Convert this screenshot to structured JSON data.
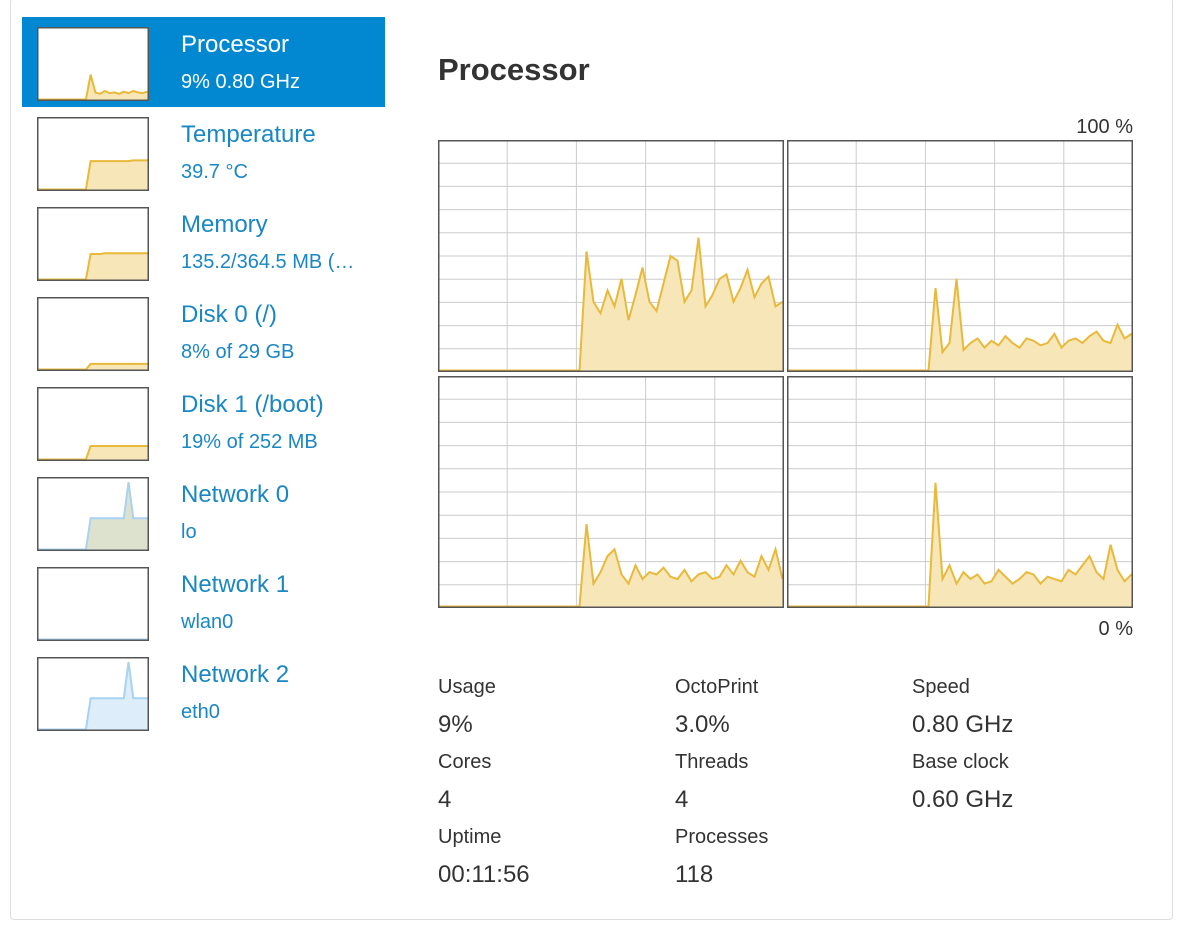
{
  "sidebar": [
    {
      "name": "Processor",
      "detail": "9% 0.80 GHz",
      "selected": true,
      "color": "#e8b93a",
      "fill": "#f7e6b8",
      "history": [
        0,
        0,
        0,
        0,
        0,
        0,
        0,
        0,
        0,
        0,
        0,
        35,
        10,
        8,
        12,
        9,
        10,
        8,
        11,
        9,
        12,
        10,
        9,
        11
      ]
    },
    {
      "name": "Temperature",
      "detail": "39.7 °C",
      "color": "#e8b93a",
      "fill": "#f7e6b8",
      "history": [
        0,
        0,
        0,
        0,
        0,
        0,
        0,
        0,
        0,
        0,
        0,
        40,
        40,
        40,
        40,
        40,
        40,
        40,
        40,
        40,
        41,
        41,
        41,
        41
      ]
    },
    {
      "name": "Memory",
      "detail": "135.2/364.5 MB (…",
      "color": "#e8b93a",
      "fill": "#f7e6b8",
      "history": [
        0,
        0,
        0,
        0,
        0,
        0,
        0,
        0,
        0,
        0,
        0,
        36,
        36,
        36,
        37,
        37,
        37,
        37,
        37,
        37,
        37,
        37,
        37,
        37
      ]
    },
    {
      "name": "Disk 0 (/)",
      "detail": "8% of 29 GB",
      "color": "#e8b93a",
      "fill": "#f7e6b8",
      "history": [
        0,
        0,
        0,
        0,
        0,
        0,
        0,
        0,
        0,
        0,
        0,
        8,
        8,
        8,
        8,
        8,
        8,
        8,
        8,
        8,
        8,
        8,
        8,
        8
      ]
    },
    {
      "name": "Disk 1 (/boot)",
      "detail": "19% of 252 MB",
      "color": "#e8b93a",
      "fill": "#f7e6b8",
      "history": [
        0,
        0,
        0,
        0,
        0,
        0,
        0,
        0,
        0,
        0,
        0,
        19,
        19,
        19,
        19,
        19,
        19,
        19,
        19,
        19,
        19,
        19,
        19,
        19
      ]
    },
    {
      "name": "Network 0",
      "detail": "lo",
      "color": "#a9d2f0",
      "fill": "#dde2cf",
      "history": [
        0,
        0,
        0,
        0,
        0,
        0,
        0,
        0,
        0,
        0,
        0,
        44,
        44,
        44,
        44,
        44,
        44,
        44,
        44,
        95,
        44,
        44,
        44,
        44
      ]
    },
    {
      "name": "Network 1",
      "detail": "wlan0",
      "color": "#a9d2f0",
      "fill": "#ddeefa",
      "history": [
        0,
        0,
        0,
        0,
        0,
        0,
        0,
        0,
        0,
        0,
        0,
        0,
        0,
        0,
        0,
        0,
        0,
        0,
        0,
        0,
        0,
        0,
        0,
        0
      ]
    },
    {
      "name": "Network 2",
      "detail": "eth0",
      "color": "#a9d2f0",
      "fill": "#ddeefa",
      "history": [
        0,
        0,
        0,
        0,
        0,
        0,
        0,
        0,
        0,
        0,
        0,
        44,
        44,
        44,
        44,
        44,
        44,
        44,
        44,
        95,
        44,
        44,
        44,
        44
      ]
    }
  ],
  "panel": {
    "title": "Processor",
    "max_label": "100 %",
    "min_label": "0 %",
    "color": "#e8b93a",
    "fill": "#f7e6b8",
    "cores": [
      [
        0,
        0,
        0,
        0,
        0,
        0,
        0,
        0,
        0,
        0,
        0,
        0,
        0,
        0,
        0,
        0,
        0,
        0,
        0,
        0,
        0,
        52,
        30,
        25,
        35,
        28,
        40,
        22,
        33,
        45,
        30,
        26,
        38,
        50,
        48,
        30,
        35,
        58,
        28,
        33,
        40,
        42,
        30,
        36,
        44,
        32,
        38,
        41,
        28,
        30
      ],
      [
        0,
        0,
        0,
        0,
        0,
        0,
        0,
        0,
        0,
        0,
        0,
        0,
        0,
        0,
        0,
        0,
        0,
        0,
        0,
        0,
        0,
        36,
        8,
        12,
        40,
        9,
        12,
        14,
        10,
        13,
        11,
        15,
        12,
        10,
        14,
        13,
        11,
        12,
        16,
        10,
        13,
        14,
        12,
        15,
        17,
        13,
        12,
        20,
        14,
        16
      ],
      [
        0,
        0,
        0,
        0,
        0,
        0,
        0,
        0,
        0,
        0,
        0,
        0,
        0,
        0,
        0,
        0,
        0,
        0,
        0,
        0,
        0,
        36,
        10,
        15,
        22,
        25,
        14,
        10,
        18,
        12,
        15,
        14,
        17,
        13,
        12,
        16,
        11,
        14,
        15,
        12,
        13,
        18,
        14,
        20,
        15,
        13,
        22,
        16,
        25,
        12
      ],
      [
        0,
        0,
        0,
        0,
        0,
        0,
        0,
        0,
        0,
        0,
        0,
        0,
        0,
        0,
        0,
        0,
        0,
        0,
        0,
        0,
        0,
        54,
        12,
        18,
        10,
        15,
        12,
        14,
        10,
        11,
        16,
        13,
        10,
        12,
        15,
        14,
        10,
        13,
        12,
        11,
        16,
        14,
        18,
        22,
        15,
        12,
        27,
        16,
        11,
        14
      ]
    ]
  },
  "stats": [
    {
      "label": "Usage",
      "value": "9%"
    },
    {
      "label": "OctoPrint",
      "value": "3.0%"
    },
    {
      "label": "Speed",
      "value": "0.80 GHz"
    },
    {
      "label": "Cores",
      "value": "4"
    },
    {
      "label": "Threads",
      "value": "4"
    },
    {
      "label": "Base clock",
      "value": "0.60 GHz"
    },
    {
      "label": "Uptime",
      "value": "00:11:56"
    },
    {
      "label": "Processes",
      "value": "118"
    }
  ]
}
